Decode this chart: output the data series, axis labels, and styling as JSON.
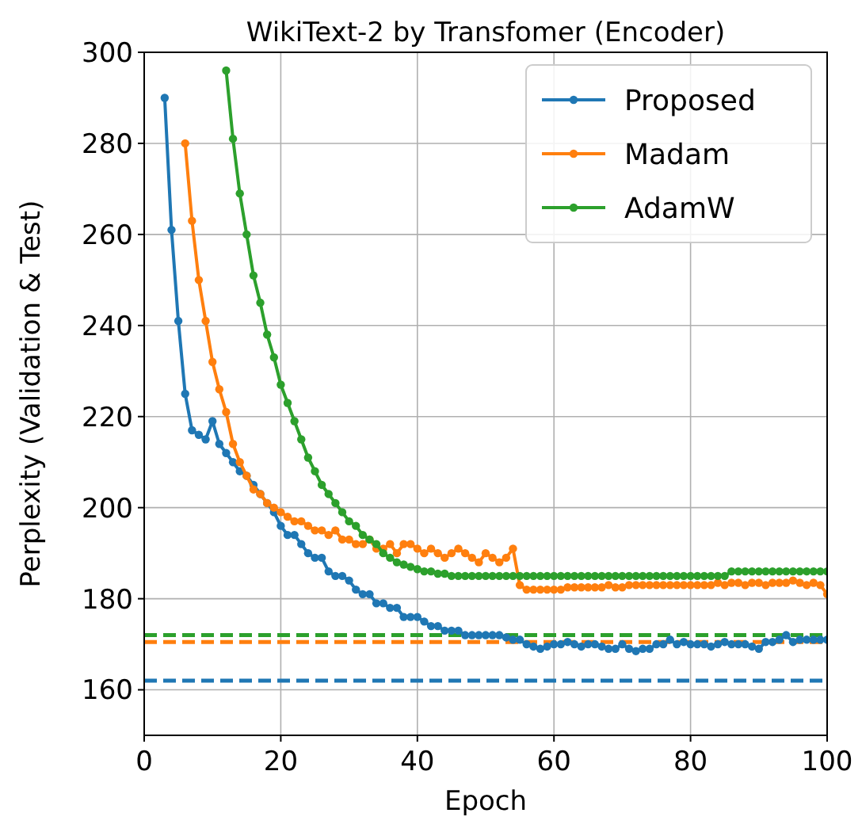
{
  "chart_data": {
    "type": "line",
    "title": "WikiText-2 by Transfomer (Encoder)",
    "xlabel": "Epoch",
    "ylabel": "Perplexity (Validation & Test)",
    "series": [
      {
        "name": "Proposed",
        "color": "#1f77b4",
        "x": [
          3,
          4,
          5,
          6,
          7,
          8,
          9,
          10,
          11,
          12,
          13,
          14,
          15,
          16,
          17,
          18,
          19,
          20,
          21,
          22,
          23,
          24,
          25,
          26,
          27,
          28,
          29,
          30,
          31,
          32,
          33,
          34,
          35,
          36,
          37,
          38,
          39,
          40,
          41,
          42,
          43,
          44,
          45,
          46,
          47,
          48,
          49,
          50,
          51,
          52,
          53,
          54,
          55,
          56,
          57,
          58,
          59,
          60,
          61,
          62,
          63,
          64,
          65,
          66,
          67,
          68,
          69,
          70,
          71,
          72,
          73,
          74,
          75,
          76,
          77,
          78,
          79,
          80,
          81,
          82,
          83,
          84,
          85,
          86,
          87,
          88,
          89,
          90,
          91,
          92,
          93,
          94,
          95,
          96,
          97,
          98,
          99,
          100
        ],
        "values": [
          290,
          261,
          241,
          225,
          217,
          216,
          215,
          219,
          214,
          212,
          210,
          208,
          207,
          205,
          203,
          201,
          199,
          196,
          194,
          194,
          192,
          190,
          189,
          189,
          186,
          185,
          185,
          184,
          182,
          181,
          181,
          179,
          179,
          178,
          178,
          176,
          176,
          176,
          175,
          174,
          174,
          173,
          173,
          173,
          172,
          172,
          172,
          172,
          172,
          172,
          171.5,
          171,
          171,
          170,
          169.5,
          169,
          169.5,
          170,
          170,
          170.5,
          170,
          169.5,
          170,
          170,
          169.5,
          169,
          169,
          170,
          169,
          168.5,
          169,
          169,
          170,
          170,
          171,
          170,
          170.5,
          170,
          170,
          170,
          169.5,
          170,
          170.5,
          170,
          170,
          170,
          169.5,
          169,
          170.5,
          170.5,
          171,
          172,
          170.5,
          171,
          171,
          171,
          171,
          171
        ]
      },
      {
        "name": "Madam",
        "color": "#ff7f0e",
        "x": [
          6,
          7,
          8,
          9,
          10,
          11,
          12,
          13,
          14,
          15,
          16,
          17,
          18,
          19,
          20,
          21,
          22,
          23,
          24,
          25,
          26,
          27,
          28,
          29,
          30,
          31,
          32,
          33,
          34,
          35,
          36,
          37,
          38,
          39,
          40,
          41,
          42,
          43,
          44,
          45,
          46,
          47,
          48,
          49,
          50,
          51,
          52,
          53,
          54,
          55,
          56,
          57,
          58,
          59,
          60,
          61,
          62,
          63,
          64,
          65,
          66,
          67,
          68,
          69,
          70,
          71,
          72,
          73,
          74,
          75,
          76,
          77,
          78,
          79,
          80,
          81,
          82,
          83,
          84,
          85,
          86,
          87,
          88,
          89,
          90,
          91,
          92,
          93,
          94,
          95,
          96,
          97,
          98,
          99,
          100
        ],
        "values": [
          280,
          263,
          250,
          241,
          232,
          226,
          221,
          214,
          210,
          207,
          204,
          203,
          201,
          200,
          199,
          198,
          197,
          197,
          196,
          195,
          195,
          194,
          195,
          193,
          193,
          192,
          192,
          193,
          191,
          191,
          192,
          190,
          192,
          192,
          191,
          190,
          191,
          190,
          189,
          190,
          191,
          190,
          189,
          188,
          190,
          189,
          188,
          189,
          191,
          183,
          182,
          182,
          182,
          182,
          182,
          182,
          182.5,
          182.5,
          182.5,
          182.5,
          182.5,
          182.5,
          183,
          182.5,
          182.5,
          183,
          183,
          183,
          183,
          183,
          183,
          183,
          183,
          183,
          183,
          183,
          183,
          183,
          183.5,
          183,
          183.5,
          183.5,
          183,
          183.5,
          183.5,
          183,
          183.5,
          183.5,
          183.5,
          184,
          183.5,
          183,
          183.5,
          183,
          181
        ]
      },
      {
        "name": "AdamW",
        "color": "#2ca02c",
        "x": [
          12,
          13,
          14,
          15,
          16,
          17,
          18,
          19,
          20,
          21,
          22,
          23,
          24,
          25,
          26,
          27,
          28,
          29,
          30,
          31,
          32,
          33,
          34,
          35,
          36,
          37,
          38,
          39,
          40,
          41,
          42,
          43,
          44,
          45,
          46,
          47,
          48,
          49,
          50,
          51,
          52,
          53,
          54,
          55,
          56,
          57,
          58,
          59,
          60,
          61,
          62,
          63,
          64,
          65,
          66,
          67,
          68,
          69,
          70,
          71,
          72,
          73,
          74,
          75,
          76,
          77,
          78,
          79,
          80,
          81,
          82,
          83,
          84,
          85,
          86,
          87,
          88,
          89,
          90,
          91,
          92,
          93,
          94,
          95,
          96,
          97,
          98,
          99,
          100
        ],
        "values": [
          296,
          281,
          269,
          260,
          251,
          245,
          238,
          233,
          227,
          223,
          219,
          215,
          211,
          208,
          205,
          203,
          201,
          199,
          197,
          196,
          194,
          193,
          192,
          190,
          189,
          188,
          187.5,
          187,
          186.5,
          186,
          186,
          185.5,
          185.5,
          185,
          185,
          185,
          185,
          185,
          185,
          185,
          185,
          185,
          185,
          185,
          185,
          185,
          185,
          185,
          185,
          185,
          185,
          185,
          185,
          185,
          185,
          185,
          185,
          185,
          185,
          185,
          185,
          185,
          185,
          185,
          185,
          185,
          185,
          185,
          185,
          185,
          185,
          185,
          185,
          185,
          186,
          186,
          186,
          186,
          186,
          186,
          186,
          186,
          186,
          186,
          186,
          186,
          186,
          186,
          186
        ]
      }
    ],
    "ref_lines": [
      {
        "axis": "y",
        "value": 162,
        "color": "#1f77b4",
        "line_style": "dashed"
      },
      {
        "axis": "y",
        "value": 170.5,
        "color": "#ff7f0e",
        "line_style": "dashed"
      },
      {
        "axis": "y",
        "value": 172,
        "color": "#2ca02c",
        "line_style": "dashed"
      }
    ],
    "xlim": [
      0,
      100
    ],
    "xticks": [
      0,
      20,
      40,
      60,
      80,
      100
    ],
    "ylim": [
      150,
      300
    ],
    "yticks": [
      160,
      180,
      200,
      220,
      240,
      260,
      280,
      300
    ],
    "grid": true,
    "legend": "top right",
    "marker": "circle",
    "line_style": "solid"
  }
}
